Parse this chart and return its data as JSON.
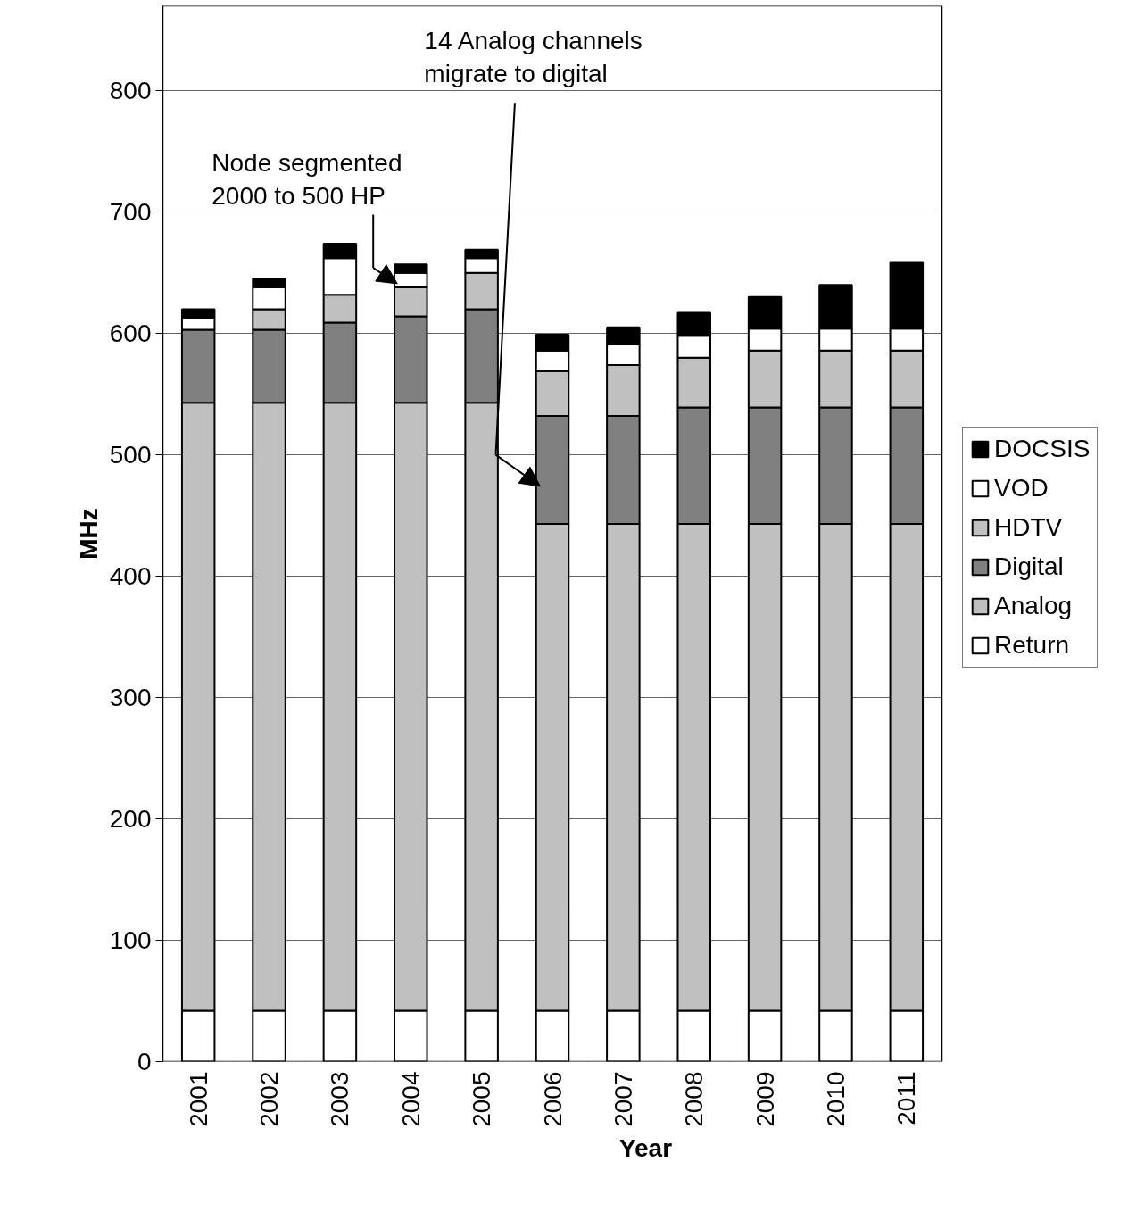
{
  "chart_data": {
    "type": "bar",
    "stacked": true,
    "xlabel": "Year",
    "ylabel": "MHz",
    "categories": [
      "2001",
      "2002",
      "2003",
      "2004",
      "2005",
      "2006",
      "2007",
      "2008",
      "2009",
      "2010",
      "2011"
    ],
    "series": [
      {
        "name": "Return",
        "color": "#ffffff",
        "values": [
          42,
          42,
          42,
          42,
          42,
          42,
          42,
          42,
          42,
          42,
          42
        ]
      },
      {
        "name": "Analog",
        "color": "#c0c0c0",
        "values": [
          501,
          501,
          501,
          501,
          501,
          401,
          401,
          401,
          401,
          401,
          401
        ]
      },
      {
        "name": "Digital",
        "color": "#808080",
        "values": [
          60,
          60,
          66,
          71,
          77,
          89,
          89,
          96,
          96,
          96,
          96
        ]
      },
      {
        "name": "HDTV",
        "color": "#c0c0c0",
        "values": [
          null,
          17,
          23,
          24,
          30,
          37,
          42,
          41,
          47,
          47,
          47
        ]
      },
      {
        "name": "VOD",
        "color": "#ffffff",
        "values": [
          10,
          18,
          30,
          12,
          12,
          17,
          17,
          18,
          18,
          18,
          18
        ]
      },
      {
        "name": "DOCSIS",
        "color": "#000000",
        "values": [
          7,
          7,
          12,
          7,
          7,
          13,
          14,
          19,
          26,
          36,
          55
        ]
      }
    ],
    "ylim": [
      0,
      870
    ],
    "yticks": [
      0,
      100,
      200,
      300,
      400,
      500,
      600,
      700,
      800
    ],
    "grid": "y",
    "legend": "right",
    "annotations": [
      "Node segmented\n2000 to 500 HP",
      "14 Analog channels\nmigrate to digital"
    ]
  }
}
